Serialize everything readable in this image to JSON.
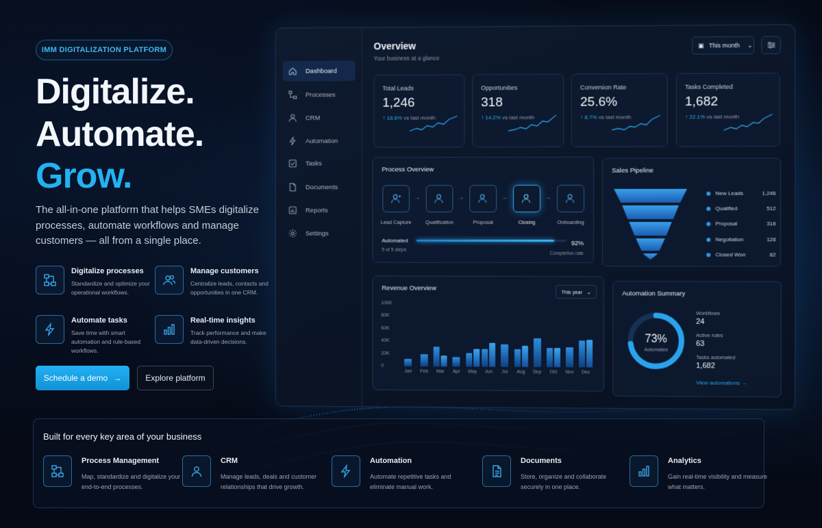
{
  "hero": {
    "badge": "IMM DIGITALIZATION PLATFORM",
    "line1": "Digitalize.",
    "line2": "Automate.",
    "line3": "Grow.",
    "description": "The all-in-one platform that helps SMEs digitalize processes, automate workflows and manage customers — all from a single place.",
    "features": [
      {
        "title": "Digitalize processes",
        "desc": "Standardize and optimize your operational workflows.",
        "icon": "process-icon"
      },
      {
        "title": "Manage customers",
        "desc": "Centralize leads, contacts and opportunities in one CRM.",
        "icon": "users-icon"
      },
      {
        "title": "Automate tasks",
        "desc": "Save time with smart automation and rule-based workflows.",
        "icon": "lightning-icon"
      },
      {
        "title": "Real-time insights",
        "desc": "Track performance and make data-driven decisions.",
        "icon": "bar-chart-icon"
      }
    ],
    "cta_primary": "Schedule a demo",
    "cta_secondary": "Explore platform"
  },
  "dashboard": {
    "nav": [
      {
        "label": "Dashboard",
        "icon": "home-icon",
        "active": true
      },
      {
        "label": "Processes",
        "icon": "process-icon"
      },
      {
        "label": "CRM",
        "icon": "user-icon"
      },
      {
        "label": "Automation",
        "icon": "lightning-icon"
      },
      {
        "label": "Tasks",
        "icon": "checkbox-icon"
      },
      {
        "label": "Documents",
        "icon": "document-icon"
      },
      {
        "label": "Reports",
        "icon": "bar-chart-icon"
      },
      {
        "label": "Settings",
        "icon": "gear-icon"
      }
    ],
    "title": "Overview",
    "subtitle": "Your business at a glance",
    "period": "This month",
    "kpis": [
      {
        "label": "Total Leads",
        "value": "1,246",
        "delta": "↑ 18.6%",
        "note": "vs last month"
      },
      {
        "label": "Opportunities",
        "value": "318",
        "delta": "↑ 14.2%",
        "note": "vs last month"
      },
      {
        "label": "Conversion Rate",
        "value": "25.6%",
        "delta": "↑ 8.7%",
        "note": "vs last month"
      },
      {
        "label": "Tasks Completed",
        "value": "1,682",
        "delta": "↑ 22.1%",
        "note": "vs last month"
      }
    ],
    "process": {
      "title": "Process Overview",
      "steps": [
        "Lead Capture",
        "Qualification",
        "Proposal",
        "Closing",
        "Onboarding"
      ],
      "active_step": 3,
      "automated_label": "Automated",
      "steps_note": "5 of 5 steps",
      "percent": "92%",
      "percent_value": 92,
      "completion_label": "Completion rate"
    },
    "pipeline": {
      "title": "Sales Pipeline",
      "stages": [
        {
          "name": "New Leads",
          "value": "1,246"
        },
        {
          "name": "Qualified",
          "value": "512"
        },
        {
          "name": "Proposal",
          "value": "318"
        },
        {
          "name": "Negotiation",
          "value": "128"
        },
        {
          "name": "Closed Won",
          "value": "82"
        }
      ]
    },
    "revenue": {
      "title": "Revenue Overview",
      "period": "This year"
    },
    "automation": {
      "title": "Automation Summary",
      "percent": "73%",
      "percent_value": 73,
      "center_label": "Automated",
      "workflows_label": "Workflows",
      "workflows": "24",
      "rules_label": "Active rules",
      "rules": "63",
      "tasks_label": "Tasks automated",
      "tasks": "1,682",
      "link": "View automations →"
    }
  },
  "chart_data": {
    "type": "bar",
    "title": "Revenue Overview",
    "categories": [
      "Jan",
      "Feb",
      "Mar",
      "Apr",
      "May",
      "Jun",
      "Jul",
      "Aug",
      "Sep",
      "Oct",
      "Nov",
      "Dec"
    ],
    "series": [
      {
        "values": [
          12,
          20,
          32,
          15,
          22,
          28,
          36,
          28,
          46,
          30,
          32,
          42
        ]
      },
      {
        "values": [
          0,
          0,
          17,
          0,
          28,
          38,
          0,
          34,
          0,
          30,
          0,
          44
        ]
      }
    ],
    "ylim": [
      0,
      100
    ],
    "yticks": [
      "100K",
      "80K",
      "60K",
      "40K",
      "20K",
      "0"
    ]
  },
  "bottom": {
    "title": "Built for every key area of your business",
    "items": [
      {
        "title": "Process Management",
        "desc": "Map, standardize and digitalize your end-to-end processes.",
        "icon": "process-icon"
      },
      {
        "title": "CRM",
        "desc": "Manage leads, deals and customer relationships that drive growth.",
        "icon": "user-icon"
      },
      {
        "title": "Automation",
        "desc": "Automate repetitive tasks and eliminate manual work.",
        "icon": "lightning-icon"
      },
      {
        "title": "Documents",
        "desc": "Store, organize and collaborate securely in one place.",
        "icon": "document-icon"
      },
      {
        "title": "Analytics",
        "desc": "Gain real-time visibility and measure what matters.",
        "icon": "bar-chart-icon"
      }
    ]
  }
}
